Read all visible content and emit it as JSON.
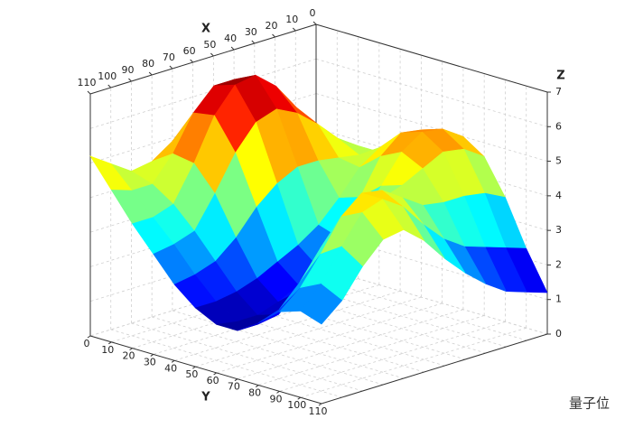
{
  "chart_data": {
    "type": "surface",
    "x_label": "X",
    "y_label": "Y",
    "z_label": "Z",
    "x": [
      0,
      10,
      20,
      30,
      40,
      50,
      60,
      70,
      80,
      90,
      100,
      110
    ],
    "y": [
      0,
      10,
      20,
      30,
      40,
      50,
      60,
      70,
      80,
      90,
      100,
      110
    ],
    "z": [
      [
        3.0,
        3.3,
        3.6,
        3.8,
        4.0,
        4.4,
        4.8,
        5.0,
        4.6,
        3.6,
        2.3,
        1.2
      ],
      [
        3.3,
        3.7,
        4.1,
        4.2,
        4.2,
        4.6,
        5.2,
        5.4,
        5.0,
        3.9,
        2.5,
        1.4
      ],
      [
        3.8,
        4.3,
        4.7,
        4.6,
        4.3,
        4.7,
        5.3,
        5.5,
        5.1,
        4.0,
        2.7,
        1.6
      ],
      [
        4.4,
        5.1,
        5.5,
        5.2,
        4.4,
        4.3,
        4.8,
        5.1,
        4.8,
        4.0,
        2.9,
        2.0
      ],
      [
        5.0,
        5.9,
        6.3,
        5.7,
        4.5,
        3.6,
        3.8,
        4.3,
        4.5,
        4.1,
        3.3,
        2.5
      ],
      [
        5.4,
        6.5,
        6.8,
        6.0,
        4.5,
        3.0,
        2.8,
        3.5,
        4.3,
        4.5,
        3.9,
        3.1
      ],
      [
        5.3,
        6.5,
        6.7,
        5.8,
        4.2,
        2.6,
        2.1,
        3.0,
        4.3,
        4.9,
        4.6,
        3.8
      ],
      [
        4.9,
        5.9,
        6.0,
        5.1,
        3.7,
        2.3,
        1.8,
        2.6,
        4.1,
        5.0,
        5.0,
        4.3
      ],
      [
        4.5,
        4.9,
        4.8,
        4.1,
        3.0,
        2.0,
        1.5,
        2.0,
        3.4,
        4.5,
        4.8,
        4.2
      ],
      [
        4.4,
        4.2,
        3.8,
        3.2,
        2.5,
        1.8,
        1.3,
        1.5,
        2.6,
        3.6,
        4.0,
        3.6
      ],
      [
        4.8,
        4.2,
        3.6,
        3.0,
        2.3,
        1.7,
        1.3,
        1.4,
        2.0,
        2.8,
        3.1,
        2.8
      ],
      [
        5.2,
        4.4,
        3.6,
        2.9,
        2.2,
        1.7,
        1.4,
        1.4,
        1.8,
        2.3,
        2.5,
        2.3
      ]
    ],
    "xlim": [
      0,
      110
    ],
    "ylim": [
      0,
      110
    ],
    "zlim": [
      0,
      7
    ],
    "xticks": [
      0,
      10,
      20,
      30,
      40,
      50,
      60,
      70,
      80,
      90,
      100,
      110
    ],
    "yticks": [
      0,
      10,
      20,
      30,
      40,
      50,
      60,
      70,
      80,
      90,
      100,
      110
    ],
    "zticks": [
      0,
      1,
      2,
      3,
      4,
      5,
      6,
      7
    ],
    "grid": true,
    "colormap": "jet"
  },
  "watermark": "量子位"
}
